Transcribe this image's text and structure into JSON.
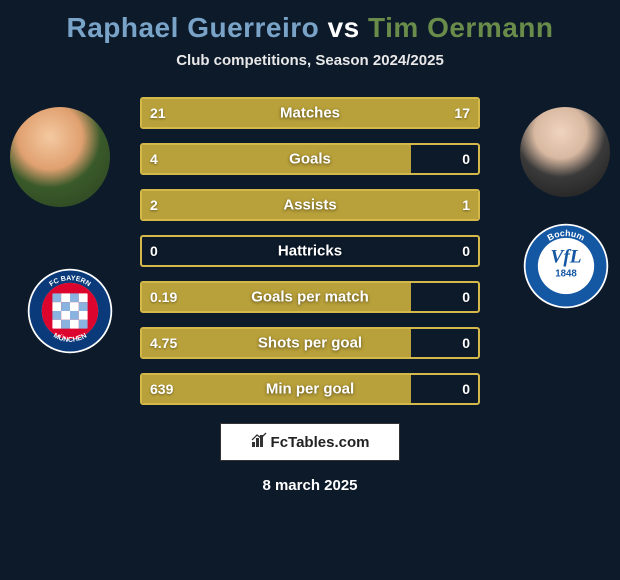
{
  "title": "Raphael Guerreiro vs Tim Oermann",
  "subtitle": "Club competitions, Season 2024/2025",
  "date": "8 march 2025",
  "colors": {
    "background": "#0c1a2a",
    "bar_fill": "#b8a03a",
    "bar_border": "#d4b84a",
    "title_left": "#7aa3c8",
    "title_right": "#6a8c4a"
  },
  "player_left": {
    "name": "Raphael Guerreiro",
    "club": "FC Bayern München"
  },
  "player_right": {
    "name": "Tim Oermann",
    "club": "VfL Bochum 1848"
  },
  "stats": [
    {
      "label": "Matches",
      "left_val": "21",
      "right_val": "17",
      "left_pct": 55,
      "right_pct": 45
    },
    {
      "label": "Goals",
      "left_val": "4",
      "right_val": "0",
      "left_pct": 80,
      "right_pct": 0
    },
    {
      "label": "Assists",
      "left_val": "2",
      "right_val": "1",
      "left_pct": 67,
      "right_pct": 33
    },
    {
      "label": "Hattricks",
      "left_val": "0",
      "right_val": "0",
      "left_pct": 0,
      "right_pct": 0
    },
    {
      "label": "Goals per match",
      "left_val": "0.19",
      "right_val": "0",
      "left_pct": 80,
      "right_pct": 0
    },
    {
      "label": "Shots per goal",
      "left_val": "4.75",
      "right_val": "0",
      "left_pct": 80,
      "right_pct": 0
    },
    {
      "label": "Min per goal",
      "left_val": "639",
      "right_val": "0",
      "left_pct": 80,
      "right_pct": 0
    }
  ],
  "logo_text": "FcTables.com"
}
